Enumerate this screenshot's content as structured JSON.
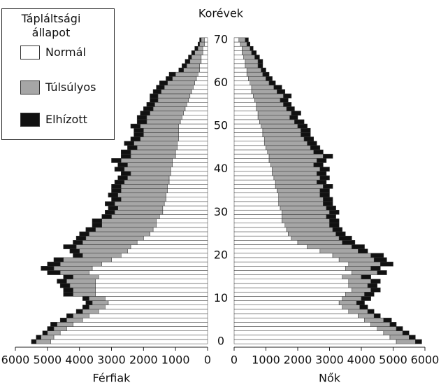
{
  "chart_data": {
    "type": "bar",
    "orientation": "horizontal",
    "stacked": true,
    "age_label": "Korévek",
    "legend_title": "Tápláltsági állapot",
    "series": [
      {
        "name": "Normál",
        "color": "#ffffff"
      },
      {
        "name": "Túlsúlyos",
        "color": "#a6a6a6"
      },
      {
        "name": "Elhízott",
        "color": "#111111"
      }
    ],
    "ages": [
      0,
      1,
      2,
      3,
      4,
      5,
      6,
      7,
      8,
      9,
      10,
      11,
      12,
      13,
      14,
      15,
      16,
      17,
      18,
      19,
      20,
      21,
      22,
      23,
      24,
      25,
      26,
      27,
      28,
      29,
      30,
      31,
      32,
      33,
      34,
      35,
      36,
      37,
      38,
      39,
      40,
      41,
      42,
      43,
      44,
      45,
      46,
      47,
      48,
      49,
      50,
      51,
      52,
      53,
      54,
      55,
      56,
      57,
      58,
      59,
      60,
      61,
      62,
      63,
      64,
      65,
      66,
      67,
      68,
      69,
      70
    ],
    "ylim": [
      -1,
      71
    ],
    "yticks": [
      0,
      10,
      20,
      30,
      40,
      50,
      60,
      70
    ],
    "panels": [
      {
        "xlabel": "Férfiak",
        "xlim": [
          6000,
          0
        ],
        "xticks": [
          6000,
          5000,
          4000,
          3000,
          2000,
          1000,
          0
        ],
        "values": [
          [
            4900,
            4800,
            4600,
            4400,
            4200,
            3900,
            3700,
            3400,
            3200,
            3100,
            3200,
            3500,
            3500,
            3500,
            3500,
            3400,
            3700,
            3600,
            3300,
            3000,
            2700,
            2500,
            2400,
            2200,
            2000,
            1800,
            1700,
            1600,
            1600,
            1500,
            1400,
            1400,
            1350,
            1300,
            1300,
            1250,
            1250,
            1200,
            1200,
            1150,
            1150,
            1100,
            1100,
            1000,
            1000,
            950,
            950,
            900,
            900,
            900,
            900,
            850,
            800,
            750,
            700,
            650,
            600,
            550,
            500,
            450,
            400,
            350,
            300,
            250,
            250,
            200,
            200,
            150,
            150,
            100,
            100
          ],
          [
            450,
            400,
            400,
            400,
            500,
            500,
            500,
            500,
            500,
            500,
            500,
            700,
            700,
            800,
            900,
            800,
            900,
            1200,
            1300,
            1500,
            1200,
            1500,
            1700,
            1700,
            1800,
            1900,
            1800,
            1700,
            1700,
            1500,
            1500,
            1400,
            1550,
            1400,
            1500,
            1450,
            1450,
            1400,
            1300,
            1250,
            1450,
            1400,
            1600,
            1400,
            1400,
            1250,
            1350,
            1200,
            1100,
            1100,
            1200,
            1050,
            1100,
            1050,
            1000,
            1000,
            950,
            1000,
            950,
            900,
            850,
            750,
            700,
            500,
            400,
            350,
            300,
            250,
            150,
            150,
            100
          ],
          [
            150,
            150,
            150,
            200,
            200,
            200,
            200,
            200,
            200,
            200,
            200,
            300,
            300,
            300,
            300,
            300,
            400,
            400,
            400,
            300,
            300,
            300,
            400,
            300,
            300,
            300,
            300,
            300,
            300,
            300,
            300,
            300,
            300,
            300,
            300,
            300,
            300,
            300,
            300,
            300,
            300,
            300,
            300,
            300,
            300,
            300,
            300,
            300,
            300,
            300,
            300,
            300,
            300,
            300,
            300,
            250,
            250,
            250,
            250,
            250,
            250,
            200,
            200,
            150,
            150,
            150,
            100,
            100,
            100,
            50,
            50
          ]
        ]
      },
      {
        "xlabel": "Nők",
        "xlim": [
          0,
          6000
        ],
        "xticks": [
          0,
          1000,
          2000,
          3000,
          4000,
          5000,
          6000
        ],
        "values": [
          [
            5100,
            4900,
            4700,
            4500,
            4300,
            4100,
            3900,
            3600,
            3400,
            3300,
            3400,
            3500,
            3700,
            3600,
            3600,
            3400,
            3700,
            3500,
            3600,
            3300,
            3100,
            2700,
            2300,
            2000,
            1800,
            1700,
            1650,
            1600,
            1500,
            1500,
            1500,
            1450,
            1400,
            1400,
            1400,
            1350,
            1300,
            1300,
            1250,
            1200,
            1200,
            1150,
            1100,
            1100,
            1050,
            1000,
            950,
            950,
            900,
            900,
            850,
            800,
            750,
            750,
            700,
            700,
            650,
            600,
            550,
            550,
            500,
            450,
            400,
            400,
            350,
            350,
            300,
            250,
            250,
            200,
            150
          ],
          [
            600,
            600,
            600,
            600,
            600,
            600,
            500,
            600,
            550,
            550,
            600,
            600,
            600,
            600,
            700,
            600,
            800,
            800,
            1000,
            1100,
            1200,
            1200,
            1400,
            1400,
            1500,
            1500,
            1450,
            1400,
            1500,
            1400,
            1500,
            1450,
            1400,
            1400,
            1300,
            1350,
            1500,
            1300,
            1450,
            1400,
            1500,
            1350,
            1500,
            1700,
            1450,
            1400,
            1350,
            1250,
            1200,
            1200,
            1150,
            1100,
            1000,
            1050,
            950,
            850,
            800,
            950,
            800,
            700,
            600,
            550,
            500,
            450,
            400,
            400,
            350,
            300,
            250,
            200,
            200
          ],
          [
            200,
            200,
            200,
            200,
            200,
            250,
            200,
            200,
            250,
            250,
            300,
            300,
            300,
            300,
            300,
            300,
            300,
            300,
            400,
            400,
            400,
            300,
            400,
            400,
            400,
            300,
            300,
            300,
            300,
            300,
            300,
            300,
            300,
            300,
            300,
            300,
            300,
            300,
            300,
            300,
            300,
            300,
            300,
            300,
            300,
            300,
            300,
            300,
            300,
            300,
            300,
            300,
            250,
            300,
            250,
            250,
            250,
            250,
            250,
            250,
            200,
            200,
            200,
            150,
            150,
            150,
            150,
            150,
            100,
            100,
            100
          ]
        ]
      }
    ]
  }
}
